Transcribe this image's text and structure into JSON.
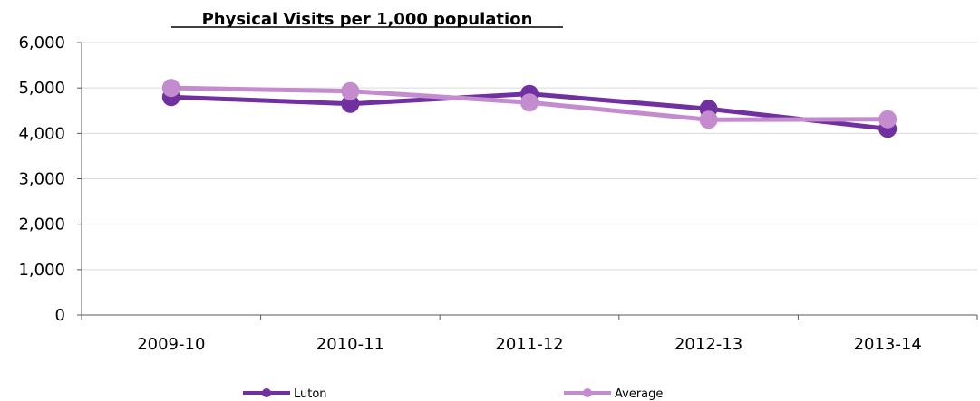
{
  "chart_data": {
    "type": "line",
    "title": "Physical Visits per 1,000 population",
    "xlabel": "",
    "ylabel": "",
    "categories": [
      "2009-10",
      "2010-11",
      "2011-12",
      "2012-13",
      "2013-14"
    ],
    "ylim": [
      0,
      6000
    ],
    "yticks": [
      0,
      1000,
      2000,
      3000,
      4000,
      5000,
      6000
    ],
    "ytick_labels": [
      "0",
      "1,000",
      "2,000",
      "3,000",
      "4,000",
      "5,000",
      "6,000"
    ],
    "grid": true,
    "legend_position": "bottom",
    "series": [
      {
        "name": "Luton",
        "color": "#7030a0",
        "values": [
          4800,
          4650,
          4870,
          4540,
          4100
        ]
      },
      {
        "name": "Average",
        "color": "#c48bce",
        "values": [
          5000,
          4930,
          4680,
          4300,
          4310
        ]
      }
    ]
  }
}
